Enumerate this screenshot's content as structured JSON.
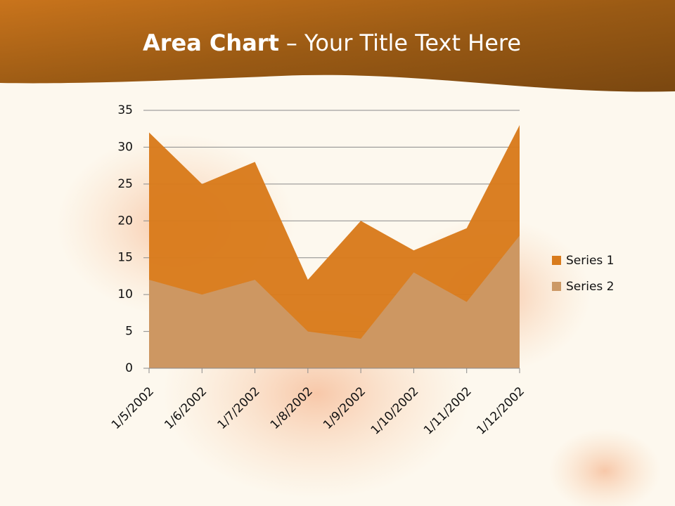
{
  "chart_data": {
    "type": "area",
    "title": [
      "Area Chart",
      "– Your Title Text Here"
    ],
    "categories": [
      "1/5/2002",
      "1/6/2002",
      "1/7/2002",
      "1/8/2002",
      "1/9/2002",
      "1/10/2002",
      "1/11/2002",
      "1/12/2002"
    ],
    "series": [
      {
        "name": "Series 1",
        "color": "#d97b1c",
        "values": [
          32,
          25,
          28,
          12,
          20,
          16,
          19,
          33
        ]
      },
      {
        "name": "Series 2",
        "color": "#cc9966",
        "values": [
          12,
          10,
          12,
          5,
          4,
          13,
          9,
          18
        ]
      }
    ],
    "ylim": [
      0,
      35
    ],
    "yticks": [
      0,
      5,
      10,
      15,
      20,
      25,
      30,
      35
    ],
    "grid": true,
    "legend": "right"
  }
}
